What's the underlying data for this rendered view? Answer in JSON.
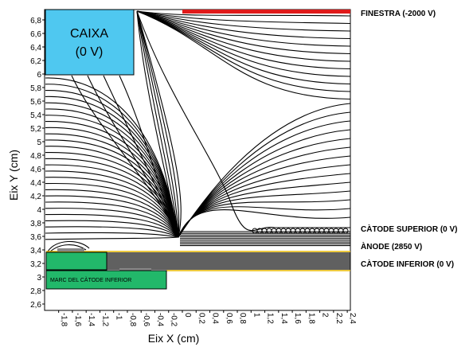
{
  "chart_data": {
    "type": "field-line diagram",
    "x_ticks": [
      "-1,8",
      "-1,6",
      "-1,4",
      "-1,2",
      "-1",
      "-0,8",
      "-0,6",
      "-0,4",
      "-0,2",
      "0",
      "0,2",
      "0,4",
      "0,6",
      "0,8",
      "1",
      "1,2",
      "1,4",
      "1,6",
      "1,8",
      "2",
      "2,2",
      "2,4"
    ],
    "y_ticks": [
      "2,6",
      "2,8",
      "3",
      "3,2",
      "3,4",
      "3,6",
      "3,8",
      "4",
      "4,2",
      "4,4",
      "4,6",
      "4,8",
      "5",
      "5,2",
      "5,4",
      "5,6",
      "5,8",
      "6",
      "6,2",
      "6,4",
      "6,6",
      "6,8"
    ],
    "xlabel": "Eix X (cm)",
    "ylabel": "Eix Y (cm)",
    "xlim": [
      -1.95,
      2.45
    ],
    "ylim": [
      2.5,
      6.95
    ]
  },
  "labels": {
    "caixa_title": "CAIXA",
    "caixa_value": "(0 V)",
    "marc": "MARC DEL CÀTODE INFERIOR",
    "finestra": "FINESTRA (-2000 V)",
    "catode_superior": "CÀTODE SUPERIOR (0 V)",
    "anode": "ÀNODE (2850 V)",
    "catode_inferior": "CÀTODE INFERIOR (0 V)"
  },
  "colors": {
    "caixa": "#4fc8f0",
    "finestra": "#e01a1a",
    "marc": "#22b86a",
    "anode_line": "#e8b800",
    "field_lines": "#000000"
  }
}
